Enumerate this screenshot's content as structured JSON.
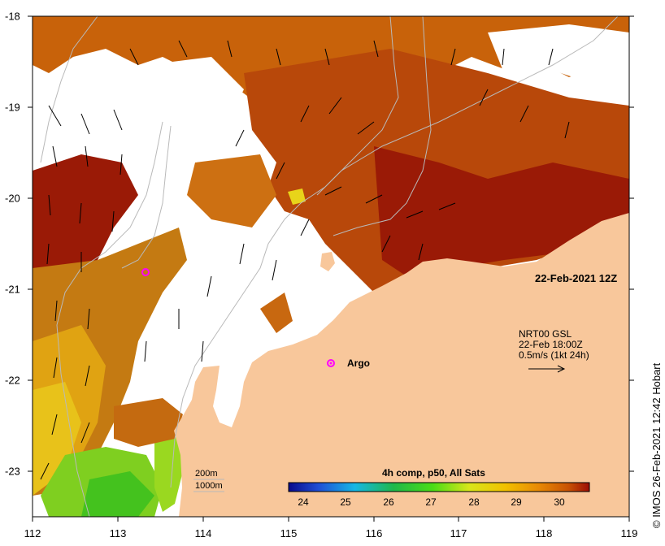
{
  "map": {
    "lon_range": [
      112,
      119
    ],
    "lat_range": [
      -23.5,
      -18
    ],
    "x_ticks": [
      "112",
      "113",
      "114",
      "115",
      "116",
      "117",
      "118",
      "119"
    ],
    "y_ticks": [
      "-18",
      "-19",
      "-20",
      "-21",
      "-22",
      "-23"
    ],
    "land_color": "#f8c79b",
    "nodata_color": "#ffffff",
    "argo_marker_color": "#ff00ff"
  },
  "labels": {
    "date": "22-Feb-2021 12Z",
    "gsl_line1": "NRT00 GSL",
    "gsl_line2": "22-Feb 18:00Z",
    "gsl_line3": "0.5m/s (1kt 24h)",
    "argo": "Argo",
    "depth_200": "200m",
    "depth_1000": "1000m",
    "credit": "© IMOS 26-Feb-2021 12:42 Hobart"
  },
  "colorbar": {
    "title": "4h comp, p50, All Sats",
    "ticks": [
      "24",
      "25",
      "26",
      "27",
      "28",
      "29",
      "30"
    ],
    "range": [
      23.7,
      30.7
    ]
  }
}
